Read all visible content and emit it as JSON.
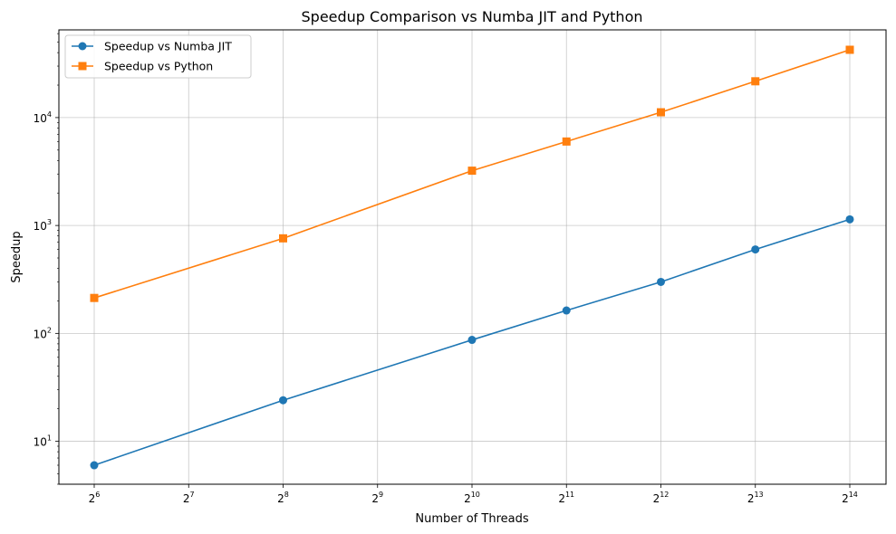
{
  "chart_data": {
    "type": "line",
    "title": "Speedup Comparison vs Numba JIT and Python",
    "xlabel": "Number of Threads",
    "ylabel": "Speedup",
    "x_scale": "log2",
    "y_scale": "log10",
    "x": [
      64,
      256,
      1024,
      2048,
      4096,
      8192,
      16384
    ],
    "xlim": [
      64,
      16384
    ],
    "ylim": [
      4,
      65000
    ],
    "x_ticks": [
      {
        "value": 64,
        "base": "2",
        "exp": "6"
      },
      {
        "value": 128,
        "base": "2",
        "exp": "7"
      },
      {
        "value": 256,
        "base": "2",
        "exp": "8"
      },
      {
        "value": 512,
        "base": "2",
        "exp": "9"
      },
      {
        "value": 1024,
        "base": "2",
        "exp": "10"
      },
      {
        "value": 2048,
        "base": "2",
        "exp": "11"
      },
      {
        "value": 4096,
        "base": "2",
        "exp": "12"
      },
      {
        "value": 8192,
        "base": "2",
        "exp": "13"
      },
      {
        "value": 16384,
        "base": "2",
        "exp": "14"
      }
    ],
    "y_ticks": [
      {
        "value": 10,
        "base": "10",
        "exp": "1"
      },
      {
        "value": 100,
        "base": "10",
        "exp": "2"
      },
      {
        "value": 1000,
        "base": "10",
        "exp": "3"
      },
      {
        "value": 10000,
        "base": "10",
        "exp": "4"
      }
    ],
    "grid": true,
    "legend_position": "top-left",
    "series": [
      {
        "name": "Speedup vs Numba JIT",
        "color": "#1f77b4",
        "marker": "circle",
        "values": [
          6,
          24,
          87,
          163,
          300,
          600,
          1140
        ]
      },
      {
        "name": "Speedup vs Python",
        "color": "#ff7f0e",
        "marker": "square",
        "values": [
          213,
          760,
          3220,
          6000,
          11200,
          21700,
          42500
        ]
      }
    ]
  }
}
